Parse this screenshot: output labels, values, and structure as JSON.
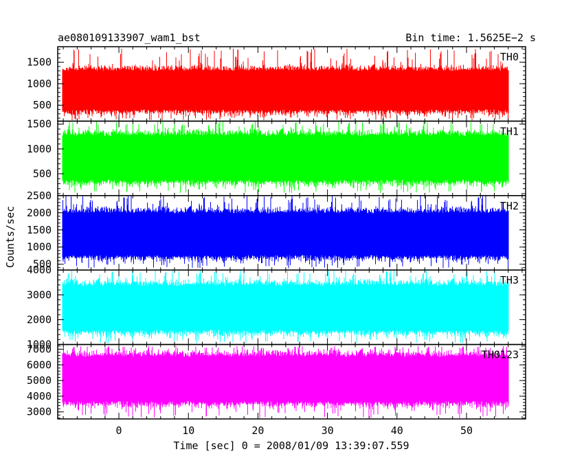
{
  "header": {
    "left_title": "ae080109133907_wam1_bst",
    "right_title": "Bin time: 1.5625E−2 s"
  },
  "chart_data": {
    "type": "line",
    "xlabel": "Time [sec] 0 = 2008/01/09 13:39:07.559",
    "ylabel": "Counts/sec",
    "xlim": [
      -8.8,
      58.5
    ],
    "x_ticks": [
      0,
      10,
      20,
      30,
      40,
      50
    ],
    "x_data_range": [
      -8.1,
      56.0
    ],
    "bin_time_s": 0.015625,
    "grid": false,
    "panels": [
      {
        "label": "TH0",
        "color": "#ff0000",
        "ylim": [
          130,
          1860
        ],
        "yticks": [
          500,
          1000,
          1500
        ],
        "mean": 700,
        "typical_min": 280,
        "typical_max": 1420,
        "spike_min": 150,
        "spike_max": 1820
      },
      {
        "label": "TH1",
        "color": "#00ff00",
        "ylim": [
          60,
          1560
        ],
        "yticks": [
          500,
          1000,
          1500
        ],
        "mean": 780,
        "typical_min": 260,
        "typical_max": 1380,
        "spike_min": 110,
        "spike_max": 1560
      },
      {
        "label": "TH2",
        "color": "#0000ff",
        "ylim": [
          330,
          2500
        ],
        "yticks": [
          500,
          1000,
          1500,
          2000,
          2500
        ],
        "mean": 1350,
        "typical_min": 600,
        "typical_max": 2150,
        "spike_min": 380,
        "spike_max": 2500
      },
      {
        "label": "TH3",
        "color": "#00ffff",
        "ylim": [
          1000,
          4000
        ],
        "yticks": [
          1000,
          2000,
          3000,
          4000
        ],
        "mean": 2450,
        "typical_min": 1350,
        "typical_max": 3600,
        "spike_min": 1050,
        "spike_max": 4000
      },
      {
        "label": "TH0123",
        "color": "#ff00ff",
        "ylim": [
          2550,
          7300
        ],
        "yticks": [
          3000,
          4000,
          5000,
          6000,
          7000
        ],
        "mean": 5000,
        "typical_min": 3300,
        "typical_max": 6900,
        "spike_min": 2600,
        "spike_max": 7200
      }
    ]
  }
}
